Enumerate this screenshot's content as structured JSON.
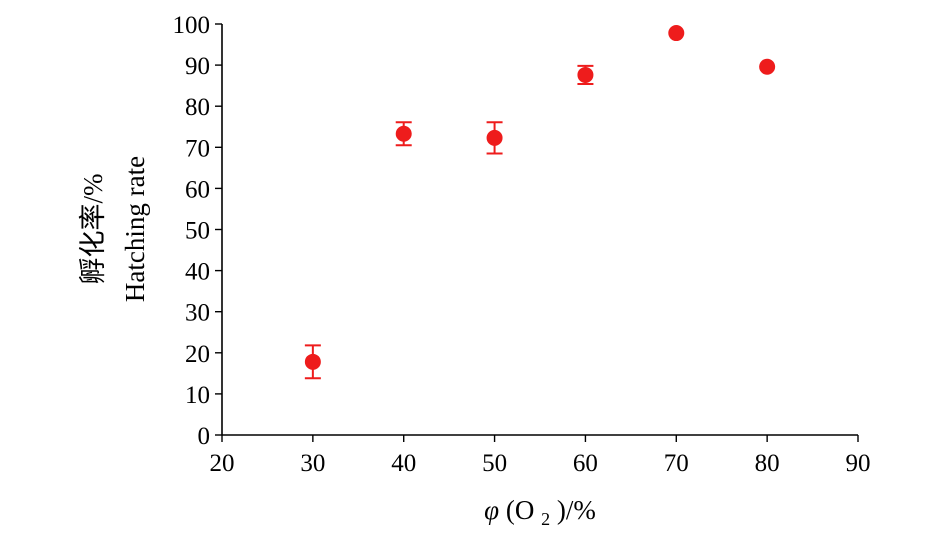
{
  "chart_data": {
    "type": "scatter",
    "title": "",
    "xlabel": {
      "symbol": "φ",
      "open": "(O",
      "sub": "2",
      "close": ")/%"
    },
    "ylabel_lines": [
      "孵化率/%",
      "Hatching rate"
    ],
    "xlim": [
      20,
      90
    ],
    "ylim": [
      0,
      100
    ],
    "xticks": [
      20,
      30,
      40,
      50,
      60,
      70,
      80,
      90
    ],
    "yticks": [
      0,
      10,
      20,
      30,
      40,
      50,
      60,
      70,
      80,
      90,
      100
    ],
    "grid": false,
    "legend": "none",
    "series": [
      {
        "color": "#ee1c1c",
        "points": [
          {
            "x": 30,
            "y": 17.8,
            "err": 4.0
          },
          {
            "x": 40,
            "y": 73.3,
            "err": 2.8
          },
          {
            "x": 50,
            "y": 72.3,
            "err": 3.8
          },
          {
            "x": 60,
            "y": 87.6,
            "err": 2.2
          },
          {
            "x": 70,
            "y": 97.8,
            "err": 0
          },
          {
            "x": 80,
            "y": 89.6,
            "err": 0
          }
        ]
      }
    ]
  }
}
